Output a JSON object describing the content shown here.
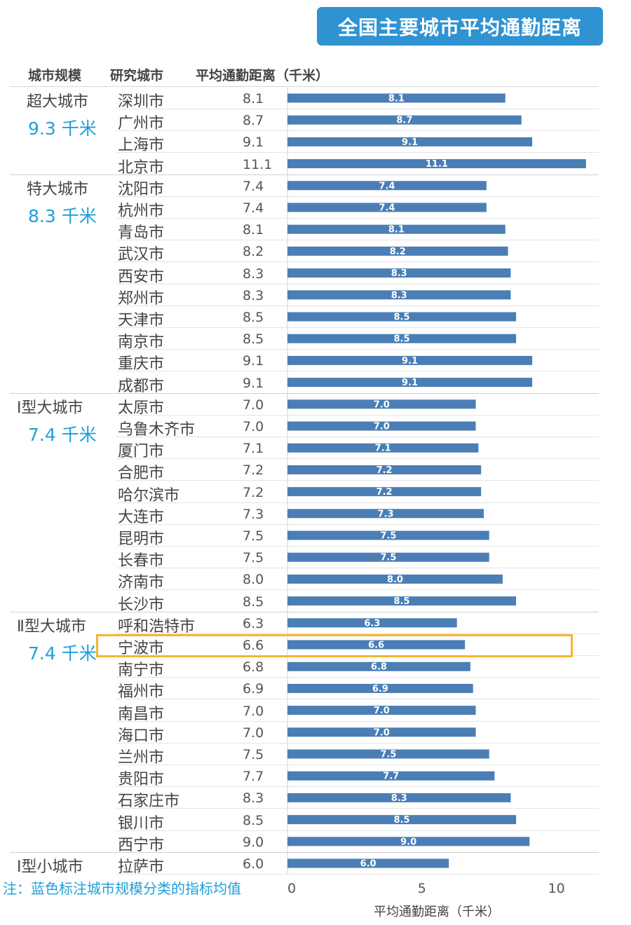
{
  "title": "全国主要城市平均通勤距离",
  "headers": {
    "scale": "城市规模",
    "city": "研究城市",
    "avg": "平均通勤距离（千米）"
  },
  "groups": [
    {
      "name": "超大城市",
      "avg": "9.3 千米"
    },
    {
      "name": "特大城市",
      "avg": "8.3 千米"
    },
    {
      "name": "Ⅰ型大城市",
      "avg": "7.4 千米"
    },
    {
      "name": "Ⅱ型大城市",
      "avg": "7.4 千米"
    },
    {
      "name": "Ⅰ型小城市",
      "avg": ""
    }
  ],
  "note": "注：蓝色标注城市规模分类的指标均值",
  "highlight_color": "#f7b531",
  "bar_color": "#4a7eb5",
  "chart_data": {
    "type": "bar",
    "orientation": "horizontal",
    "title": "全国主要城市平均通勤距离",
    "xlabel": "平均通勤距离（千米）",
    "ylabel": "",
    "xlim": [
      0,
      11
    ],
    "xticks": [
      "0",
      "5",
      "10"
    ],
    "tick_values": [
      0,
      5,
      10
    ],
    "highlighted": "宁波市",
    "categories": [
      "深圳市",
      "广州市",
      "上海市",
      "北京市",
      "沈阳市",
      "杭州市",
      "青岛市",
      "武汉市",
      "西安市",
      "郑州市",
      "天津市",
      "南京市",
      "重庆市",
      "成都市",
      "太原市",
      "乌鲁木齐市",
      "厦门市",
      "合肥市",
      "哈尔滨市",
      "大连市",
      "昆明市",
      "长春市",
      "济南市",
      "长沙市",
      "呼和浩特市",
      "宁波市",
      "南宁市",
      "福州市",
      "南昌市",
      "海口市",
      "兰州市",
      "贵阳市",
      "石家庄市",
      "银川市",
      "西宁市",
      "拉萨市"
    ],
    "values": [
      8.1,
      8.7,
      9.1,
      11.1,
      7.4,
      7.4,
      8.1,
      8.2,
      8.3,
      8.3,
      8.5,
      8.5,
      9.1,
      9.1,
      7.0,
      7.0,
      7.1,
      7.2,
      7.2,
      7.3,
      7.5,
      7.5,
      8.0,
      8.5,
      6.3,
      6.6,
      6.8,
      6.9,
      7.0,
      7.0,
      7.5,
      7.7,
      8.3,
      8.5,
      9.0,
      6.0
    ],
    "labels": [
      "8.1",
      "8.7",
      "9.1",
      "11.1",
      "7.4",
      "7.4",
      "8.1",
      "8.2",
      "8.3",
      "8.3",
      "8.5",
      "8.5",
      "9.1",
      "9.1",
      "7.0",
      "7.0",
      "7.1",
      "7.2",
      "7.2",
      "7.3",
      "7.5",
      "7.5",
      "8.0",
      "8.5",
      "6.3",
      "6.6",
      "6.8",
      "6.9",
      "7.0",
      "7.0",
      "7.5",
      "7.7",
      "8.3",
      "8.5",
      "9.0",
      "6.0"
    ],
    "group_sizes": [
      4,
      10,
      10,
      11,
      1
    ]
  }
}
